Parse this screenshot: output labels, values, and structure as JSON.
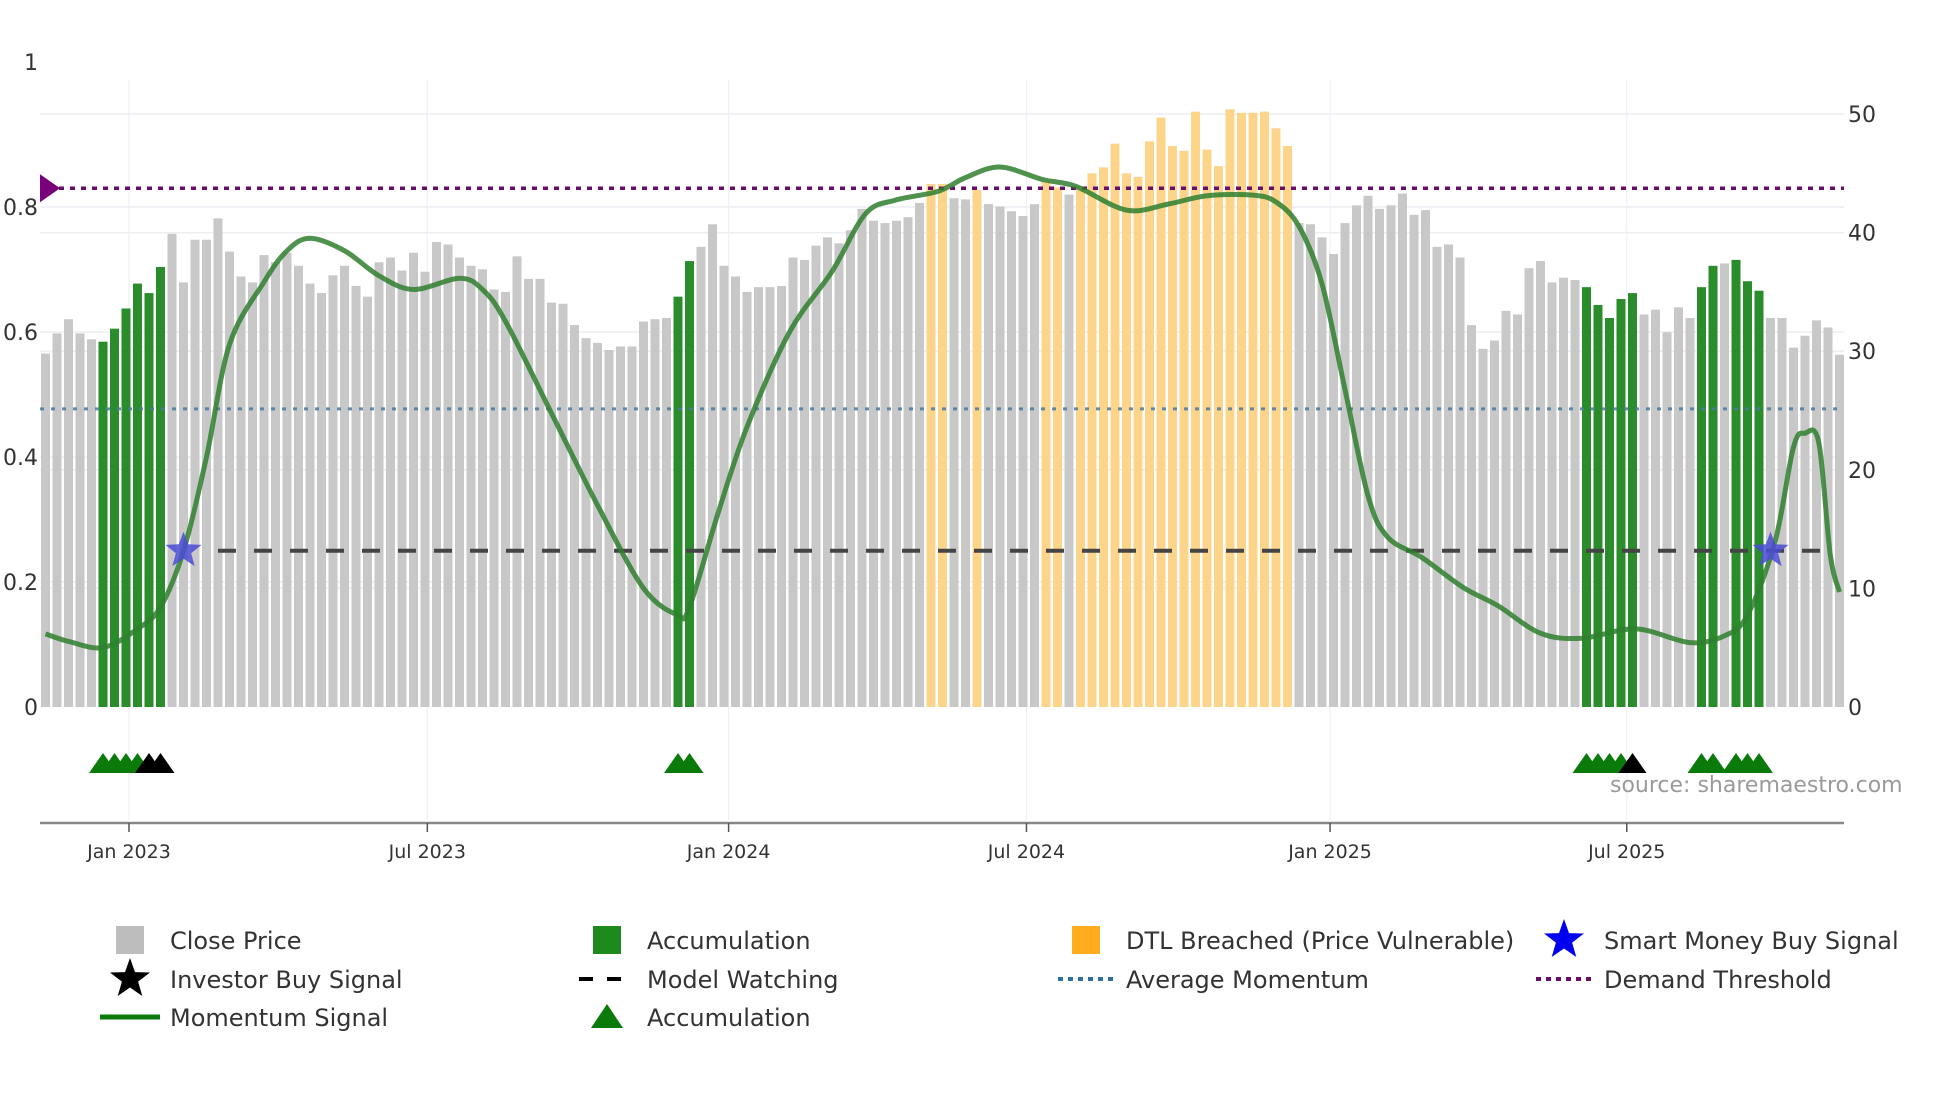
{
  "chart_data": {
    "type": "bar",
    "title": "",
    "x_unit": "week index (1-based)",
    "x_ticks": [
      {
        "label": "Jan 2023",
        "at": 8.26
      },
      {
        "label": "Jul 2023",
        "at": 34.2
      },
      {
        "label": "Jan 2024",
        "at": 60.4
      },
      {
        "label": "Jul 2024",
        "at": 86.3
      },
      {
        "label": "Jan 2025",
        "at": 112.7
      },
      {
        "label": "Jul 2025",
        "at": 138.5
      }
    ],
    "left_axis": {
      "ticks": [
        "0",
        "0.2",
        "0.4",
        "0.6",
        "0.8",
        "1"
      ],
      "range": [
        0,
        1
      ]
    },
    "right_axis": {
      "ticks": [
        "0",
        "10",
        "20",
        "30",
        "40",
        "50"
      ],
      "range": [
        0,
        50
      ]
    },
    "close_price": [
      29.8,
      31.5,
      32.7,
      31.5,
      31.0,
      30.8,
      31.9,
      33.6,
      35.7,
      34.9,
      37.1,
      39.9,
      35.8,
      39.4,
      39.4,
      41.2,
      38.4,
      36.3,
      35.8,
      38.1,
      37.5,
      38.3,
      37.2,
      35.7,
      34.9,
      36.4,
      37.2,
      35.5,
      34.6,
      37.5,
      37.9,
      36.8,
      38.3,
      36.7,
      39.2,
      39.0,
      37.9,
      37.2,
      36.9,
      35.2,
      35.0,
      38.0,
      36.1,
      36.1,
      34.1,
      34.0,
      32.2,
      31.1,
      30.7,
      30.1,
      30.4,
      30.4,
      32.5,
      32.7,
      32.8,
      34.6,
      37.6,
      38.8,
      40.7,
      37.2,
      36.3,
      35.0,
      35.4,
      35.4,
      35.5,
      37.9,
      37.7,
      38.9,
      39.6,
      39.1,
      40.2,
      42.0,
      41.0,
      40.8,
      41.0,
      41.3,
      42.5,
      44.1,
      44.1,
      42.9,
      42.8,
      43.6,
      42.4,
      42.2,
      41.8,
      41.4,
      42.4,
      44.3,
      43.8,
      43.2,
      43.9,
      45.0,
      45.5,
      47.5,
      45.0,
      44.7,
      47.7,
      49.7,
      47.3,
      46.9,
      50.2,
      47.0,
      45.6,
      50.4,
      50.1,
      50.1,
      50.2,
      48.8,
      47.3,
      40.8,
      40.7,
      39.6,
      38.2,
      40.8,
      42.3,
      43.1,
      42.0,
      42.3,
      43.3,
      41.5,
      41.9,
      38.8,
      39.0,
      37.9,
      32.2,
      30.2,
      30.9,
      33.4,
      33.1,
      37.0,
      37.6,
      35.8,
      36.2,
      36.0,
      35.4,
      33.9,
      32.8,
      34.4,
      34.9,
      33.1,
      33.5,
      31.6,
      33.7,
      32.8,
      35.4,
      37.2,
      37.4,
      37.7,
      35.9,
      35.1,
      32.8,
      32.8,
      30.3,
      31.3,
      32.6,
      32.0,
      29.7
    ],
    "accumulation_weeks": [
      6,
      7,
      8,
      9,
      10,
      11,
      56,
      57,
      135,
      136,
      137,
      138,
      139,
      145,
      146,
      148,
      149,
      150
    ],
    "dtl_breached_weeks": [
      78,
      79,
      82,
      88,
      89,
      91,
      92,
      93,
      94,
      95,
      96,
      97,
      98,
      99,
      100,
      101,
      102,
      103,
      104,
      105,
      106,
      107,
      108,
      109
    ],
    "momentum_signal": [
      [
        1,
        0.117
      ],
      [
        3,
        0.105
      ],
      [
        6,
        0.095
      ],
      [
        9,
        0.125
      ],
      [
        11,
        0.16
      ],
      [
        13,
        0.25
      ],
      [
        15,
        0.4
      ],
      [
        17,
        0.58
      ],
      [
        20,
        0.68
      ],
      [
        22,
        0.73
      ],
      [
        24,
        0.75
      ],
      [
        27,
        0.73
      ],
      [
        30,
        0.69
      ],
      [
        33,
        0.668
      ],
      [
        37,
        0.686
      ],
      [
        39,
        0.668
      ],
      [
        41,
        0.617
      ],
      [
        45,
        0.47
      ],
      [
        49,
        0.323
      ],
      [
        53,
        0.19
      ],
      [
        56,
        0.147
      ],
      [
        57,
        0.16
      ],
      [
        59.6,
        0.317
      ],
      [
        62,
        0.448
      ],
      [
        65.7,
        0.6
      ],
      [
        69.4,
        0.697
      ],
      [
        72.3,
        0.789
      ],
      [
        74.9,
        0.811
      ],
      [
        78.6,
        0.825
      ],
      [
        81,
        0.847
      ],
      [
        84,
        0.864
      ],
      [
        87.7,
        0.844
      ],
      [
        90.6,
        0.833
      ],
      [
        95,
        0.795
      ],
      [
        98.7,
        0.805
      ],
      [
        102,
        0.818
      ],
      [
        106,
        0.819
      ],
      [
        108,
        0.808
      ],
      [
        110,
        0.769
      ],
      [
        112,
        0.677
      ],
      [
        114,
        0.508
      ],
      [
        116,
        0.338
      ],
      [
        117.7,
        0.272
      ],
      [
        120.7,
        0.239
      ],
      [
        124.3,
        0.191
      ],
      [
        127.3,
        0.162
      ],
      [
        131,
        0.118
      ],
      [
        134.6,
        0.11
      ],
      [
        139.3,
        0.125
      ],
      [
        144,
        0.103
      ],
      [
        147,
        0.114
      ],
      [
        149,
        0.147
      ],
      [
        151.4,
        0.265
      ],
      [
        153,
        0.416
      ],
      [
        154,
        0.438
      ],
      [
        155.2,
        0.423
      ],
      [
        156.2,
        0.243
      ],
      [
        157,
        0.184
      ]
    ],
    "average_momentum": 0.477,
    "demand_threshold": 0.83,
    "model_watching": {
      "value": 0.25,
      "from_week": 16
    },
    "smart_money_buy_signals": [
      [
        13,
        0.25
      ],
      [
        151,
        0.25
      ]
    ],
    "accumulation_markers": [
      6,
      7,
      8,
      9,
      56,
      57,
      135,
      136,
      137,
      138,
      145,
      146,
      148,
      149,
      150
    ],
    "investor_buy_markers": [
      10,
      11,
      139
    ],
    "colors": {
      "close_price": "#c8c8c8",
      "accumulation": "#2a8c2a",
      "dtl": "#fdd58a",
      "momentum": "#2f7f2f",
      "average_momentum": "#4a7aa0",
      "demand_threshold": "#6a0d6a",
      "model_watching": "#444444",
      "smart_money": "#4b4bd6",
      "triangle": "#0a7a0a",
      "investor": "#000000"
    },
    "source": "source: sharemaestro.com",
    "legend": [
      {
        "label": "Close Price",
        "symbol": "square",
        "color": "#bdbdbd"
      },
      {
        "label": "Accumulation",
        "symbol": "square",
        "color": "#1e8a1e"
      },
      {
        "label": "DTL Breached (Price Vulnerable)",
        "symbol": "square",
        "color": "#ffad1f"
      },
      {
        "label": "Smart Money Buy Signal",
        "symbol": "star",
        "color": "#0000ee"
      },
      {
        "label": "Investor Buy Signal",
        "symbol": "star",
        "color": "#000000"
      },
      {
        "label": "Model Watching",
        "symbol": "dash",
        "color": "#000000"
      },
      {
        "label": "Average Momentum",
        "symbol": "dot",
        "color": "#2a6fa0"
      },
      {
        "label": "Demand Threshold",
        "symbol": "dot",
        "color": "#6a0d6a"
      },
      {
        "label": "Momentum Signal",
        "symbol": "line",
        "color": "#0a7a0a"
      },
      {
        "label": "Accumulation",
        "symbol": "triangle",
        "color": "#0a7a0a"
      }
    ],
    "legend_position": "bottom"
  }
}
